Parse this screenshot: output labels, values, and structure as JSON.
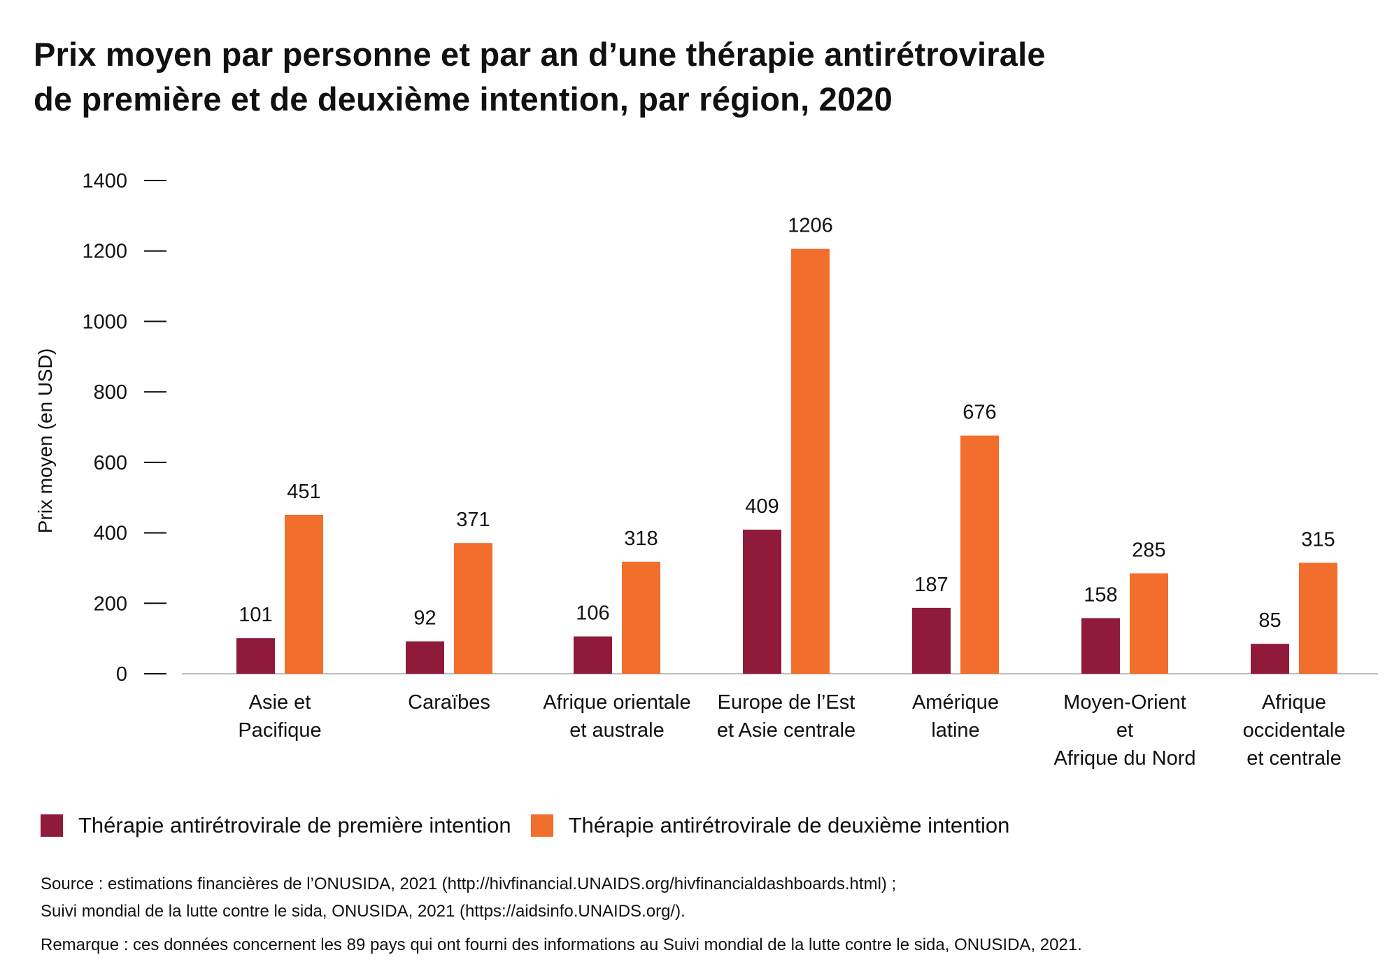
{
  "title": {
    "line1": "Prix moyen par personne et par an d’une thérapie antirétrovirale",
    "line2": "de première et de deuxième intention, par région, 2020"
  },
  "chart_data": {
    "type": "bar",
    "ylabel": "Prix moyen (en USD)",
    "xlabel": "",
    "ylim": [
      0,
      1400
    ],
    "yticks": [
      0,
      200,
      400,
      600,
      800,
      1000,
      1200,
      1400
    ],
    "grid": false,
    "legend_position": "bottom",
    "categories": [
      [
        "Asie et",
        "Pacifique"
      ],
      [
        "Caraïbes"
      ],
      [
        "Afrique orientale",
        "et australe"
      ],
      [
        "Europe de l’Est",
        "et Asie centrale"
      ],
      [
        "Amérique",
        "latine"
      ],
      [
        "Moyen-Orient",
        "et",
        "Afrique du Nord"
      ],
      [
        "Afrique",
        "occidentale",
        "et centrale"
      ]
    ],
    "series": [
      {
        "name": "Thérapie antirétrovirale de première intention",
        "color": "#8f1a3a",
        "values": [
          101,
          92,
          106,
          409,
          187,
          158,
          85
        ]
      },
      {
        "name": "Thérapie antirétrovirale de deuxième intention",
        "color": "#f26e2c",
        "values": [
          451,
          371,
          318,
          1206,
          676,
          285,
          315
        ]
      }
    ]
  },
  "source": {
    "line1": "Source : estimations financières de l’ONUSIDA, 2021 (http://hivfinancial.UNAIDS.org/hivfinancialdashboards.html) ;",
    "line2": "Suivi mondial de la lutte contre le sida, ONUSIDA, 2021 (https://aidsinfo.UNAIDS.org/).",
    "remark": "Remarque : ces données concernent les 89 pays qui ont fourni des informations au Suivi mondial de la lutte contre le sida, ONUSIDA, 2021."
  }
}
